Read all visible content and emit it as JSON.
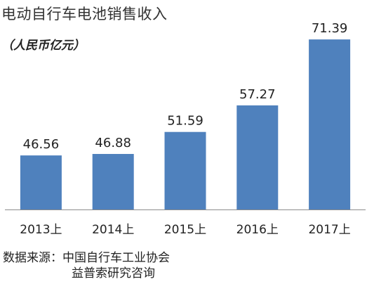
{
  "header": {
    "title": "电动自行车电池销售收入",
    "unit": "（人民币亿元）"
  },
  "footer": {
    "source_label": "数据来源：",
    "source_line1": "中国自行车工业协会",
    "source_line2": "益普索研究咨询"
  },
  "colors": {
    "bar": "#4F81BD",
    "axis": "#8C8C8C",
    "text": "#222222"
  },
  "chart_data": {
    "type": "bar",
    "title": "电动自行车电池销售收入",
    "ylabel": "（人民币亿元）",
    "xlabel": "",
    "categories": [
      "2013上",
      "2014上",
      "2015上",
      "2016上",
      "2017上"
    ],
    "values": [
      46.56,
      46.88,
      51.59,
      57.27,
      71.39
    ],
    "value_labels": [
      "46.56",
      "46.88",
      "51.59",
      "57.27",
      "71.39"
    ],
    "ylim": [
      35,
      72
    ],
    "grid": false,
    "legend": "none"
  }
}
